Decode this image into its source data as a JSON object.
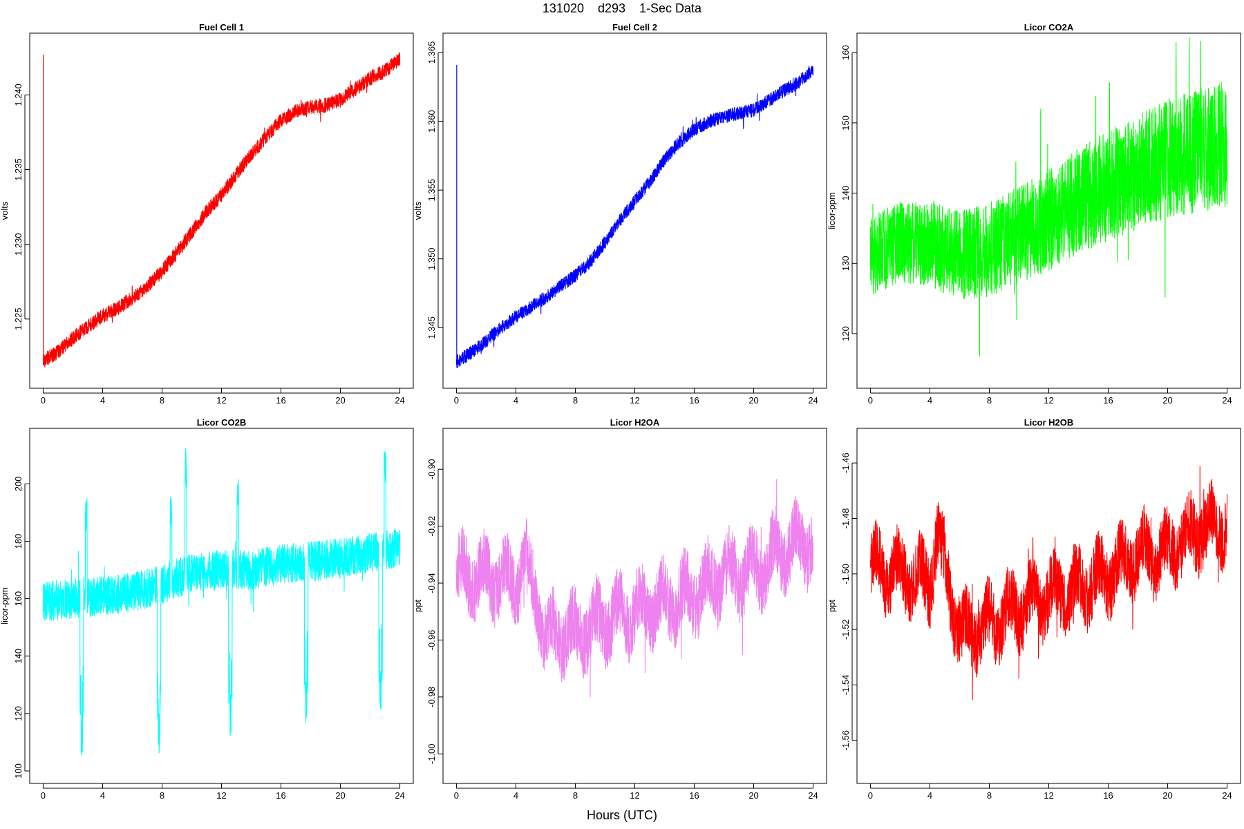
{
  "figure": {
    "title": "131020    d293    1-Sec Data",
    "xlabel": "Hours (UTC)"
  },
  "chart_data": [
    {
      "type": "line",
      "title": "Fuel Cell 1",
      "ylabel": "volts",
      "color": "#ff0000",
      "xlim": [
        0,
        24
      ],
      "ylim": [
        1.2212,
        1.2433
      ],
      "xticks": [
        0,
        4,
        8,
        12,
        16,
        20,
        24
      ],
      "yticks": [
        1.225,
        1.23,
        1.235,
        1.24
      ],
      "ytick_labels": [
        "1.225",
        "1.230",
        "1.235",
        "1.240"
      ],
      "noise": 0.0005,
      "spike": {
        "x": 0.02,
        "y": 1.2427
      },
      "x": [
        0,
        1,
        2,
        3,
        4,
        5,
        6,
        7,
        8,
        9,
        10,
        11,
        12,
        13,
        14,
        15,
        16,
        17,
        18,
        19,
        20,
        21,
        22,
        23,
        24
      ],
      "y": [
        1.2222,
        1.2228,
        1.2237,
        1.2245,
        1.2252,
        1.2257,
        1.2264,
        1.2272,
        1.2282,
        1.2295,
        1.2308,
        1.2322,
        1.2333,
        1.2347,
        1.236,
        1.2372,
        1.2383,
        1.2389,
        1.2392,
        1.2393,
        1.2397,
        1.2404,
        1.2411,
        1.2416,
        1.2424
      ]
    },
    {
      "type": "line",
      "title": "Fuel Cell 2",
      "ylabel": "volts",
      "color": "#0000ff",
      "xlim": [
        0,
        24
      ],
      "ylim": [
        1.3415,
        1.3655
      ],
      "xticks": [
        0,
        4,
        8,
        12,
        16,
        20,
        24
      ],
      "yticks": [
        1.345,
        1.35,
        1.355,
        1.36,
        1.365
      ],
      "ytick_labels": [
        "1.345",
        "1.350",
        "1.355",
        "1.360",
        "1.365"
      ],
      "noise": 0.0005,
      "spike": {
        "x": 0.02,
        "y": 1.3641
      },
      "x": [
        0,
        1,
        2,
        3,
        4,
        5,
        6,
        7,
        8,
        9,
        10,
        11,
        12,
        13,
        14,
        15,
        16,
        17,
        18,
        19,
        20,
        21,
        22,
        23,
        24
      ],
      "y": [
        1.3425,
        1.3432,
        1.344,
        1.345,
        1.3458,
        1.3465,
        1.3472,
        1.348,
        1.3488,
        1.3498,
        1.3512,
        1.3528,
        1.3542,
        1.3556,
        1.3572,
        1.3585,
        1.3594,
        1.36,
        1.3603,
        1.3606,
        1.3608,
        1.3615,
        1.3622,
        1.3628,
        1.3638
      ]
    },
    {
      "type": "line",
      "title": "Licor CO2A",
      "ylabel": "licor-ppm",
      "color": "#00ff00",
      "xlim": [
        0,
        24
      ],
      "ylim": [
        114,
        161
      ],
      "xticks": [
        0,
        4,
        8,
        12,
        16,
        20,
        24
      ],
      "yticks": [
        120,
        130,
        140,
        150,
        160
      ],
      "ytick_labels": [
        "120",
        "130",
        "140",
        "150",
        "160"
      ],
      "noise": 7,
      "x": [
        0,
        2,
        4,
        6,
        8,
        10,
        12,
        14,
        16,
        18,
        20,
        22,
        24
      ],
      "y": [
        131,
        133,
        133,
        131,
        132,
        134,
        136,
        139,
        141,
        143,
        145,
        146,
        147
      ]
    },
    {
      "type": "line",
      "title": "Licor CO2B",
      "ylabel": "licor-ppm",
      "color": "#00ffff",
      "xlim": [
        0,
        24
      ],
      "ylim": [
        100,
        215
      ],
      "xticks": [
        0,
        4,
        8,
        12,
        16,
        20,
        24
      ],
      "yticks": [
        100,
        120,
        140,
        160,
        180,
        200
      ],
      "ytick_labels": [
        "100",
        "120",
        "140",
        "160",
        "180",
        "200"
      ],
      "noise": 7,
      "x": [
        0,
        2,
        4,
        6,
        8,
        10,
        12,
        14,
        16,
        18,
        20,
        22,
        24
      ],
      "y": [
        159,
        160,
        161,
        162,
        165,
        169,
        170,
        170,
        172,
        173,
        174,
        176,
        178
      ],
      "dips": [
        {
          "x": 2.6,
          "low": 105
        },
        {
          "x": 7.8,
          "low": 103
        },
        {
          "x": 12.6,
          "low": 110
        },
        {
          "x": 17.7,
          "low": 114
        },
        {
          "x": 22.7,
          "low": 118
        }
      ],
      "peaks": [
        {
          "x": 2.9,
          "high": 195
        },
        {
          "x": 8.6,
          "high": 196
        },
        {
          "x": 9.6,
          "high": 213
        },
        {
          "x": 13.1,
          "high": 202
        },
        {
          "x": 23.0,
          "high": 212
        }
      ]
    },
    {
      "type": "line",
      "title": "Licor H2OA",
      "ylabel": "ppt",
      "color": "#ee82ee",
      "xlim": [
        0,
        24
      ],
      "ylim": [
        -1.006,
        -0.89
      ],
      "xticks": [
        0,
        4,
        8,
        12,
        16,
        20,
        24
      ],
      "yticks": [
        -1.0,
        -0.98,
        -0.96,
        -0.94,
        -0.92,
        -0.9
      ],
      "ytick_labels": [
        "-1.00",
        "-0.98",
        "-0.96",
        "-0.94",
        "-0.92",
        "-0.90"
      ],
      "noise": 0.012,
      "x": [
        0,
        2,
        4,
        4.5,
        6,
        8,
        10,
        12,
        14,
        16,
        18,
        20,
        22,
        24
      ],
      "y": [
        -0.937,
        -0.938,
        -0.94,
        -0.93,
        -0.958,
        -0.958,
        -0.953,
        -0.95,
        -0.947,
        -0.944,
        -0.937,
        -0.936,
        -0.928,
        -0.925
      ]
    },
    {
      "type": "line",
      "title": "Licor H2OB",
      "ylabel": "ppt",
      "color": "#ff0000",
      "xlim": [
        0,
        24
      ],
      "ylim": [
        -1.571,
        -1.452
      ],
      "xticks": [
        0,
        4,
        8,
        12,
        16,
        20,
        24
      ],
      "yticks": [
        -1.56,
        -1.54,
        -1.52,
        -1.5,
        -1.48,
        -1.46
      ],
      "ytick_labels": [
        "-1.56",
        "-1.54",
        "-1.52",
        "-1.50",
        "-1.48",
        "-1.46"
      ],
      "noise": 0.012,
      "x": [
        0,
        2,
        4,
        4.5,
        6,
        8,
        10,
        12,
        14,
        16,
        18,
        20,
        22,
        24
      ],
      "y": [
        -1.497,
        -1.5,
        -1.503,
        -1.485,
        -1.522,
        -1.518,
        -1.512,
        -1.508,
        -1.505,
        -1.5,
        -1.493,
        -1.492,
        -1.484,
        -1.482
      ]
    }
  ]
}
